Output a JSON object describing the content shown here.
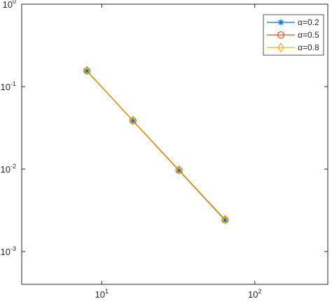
{
  "chart_data": {
    "type": "line",
    "xscale": "log",
    "yscale": "log",
    "xlim": [
      3,
      300
    ],
    "ylim": [
      0.0004,
      1
    ],
    "grid": false,
    "legend_position": "top-right",
    "x_ticks": [
      {
        "base": "10",
        "exp": "1",
        "value": 10
      },
      {
        "base": "10",
        "exp": "2",
        "value": 100
      }
    ],
    "y_ticks": [
      {
        "base": "10",
        "exp": "0",
        "value": 1
      },
      {
        "base": "10",
        "exp": "-1",
        "value": 0.1
      },
      {
        "base": "10",
        "exp": "-2",
        "value": 0.01
      },
      {
        "base": "10",
        "exp": "-3",
        "value": 0.001
      }
    ],
    "x": [
      8,
      16,
      32,
      64
    ],
    "series": [
      {
        "name": "α=0.2",
        "marker": "asterisk",
        "color": "#0072BD",
        "values": [
          0.155,
          0.0385,
          0.0096,
          0.0024
        ]
      },
      {
        "name": "α=0.5",
        "marker": "circle",
        "color": "#D95319",
        "values": [
          0.156,
          0.0387,
          0.0097,
          0.00242
        ]
      },
      {
        "name": "α=0.8",
        "marker": "diamond",
        "color": "#EDB120",
        "values": [
          0.157,
          0.039,
          0.0098,
          0.00245
        ]
      }
    ]
  }
}
